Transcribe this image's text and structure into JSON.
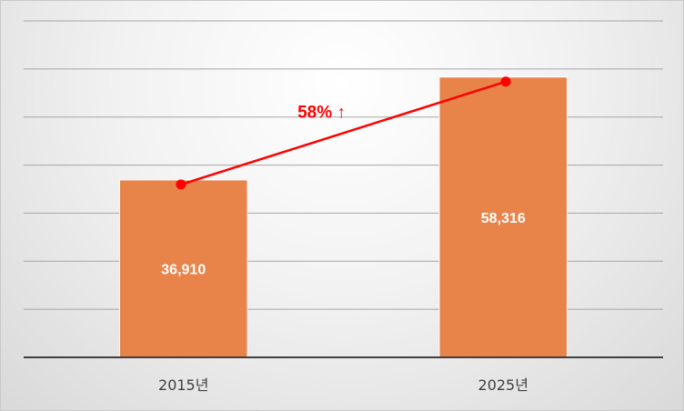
{
  "chart_data": {
    "type": "bar",
    "categories": [
      "2015년",
      "2025년"
    ],
    "values": [
      36910,
      58316
    ],
    "value_labels": [
      "36,910",
      "58,316"
    ],
    "ylim": [
      0,
      70000
    ],
    "grid": true,
    "legend": "none",
    "trend_line": true,
    "annotation": "58% ↑",
    "title": "",
    "xlabel": "",
    "ylabel": ""
  },
  "colors": {
    "bar": "#e8834a",
    "trend": "#ff0000",
    "grid": "#a6a6a6",
    "axis": "#404040"
  }
}
